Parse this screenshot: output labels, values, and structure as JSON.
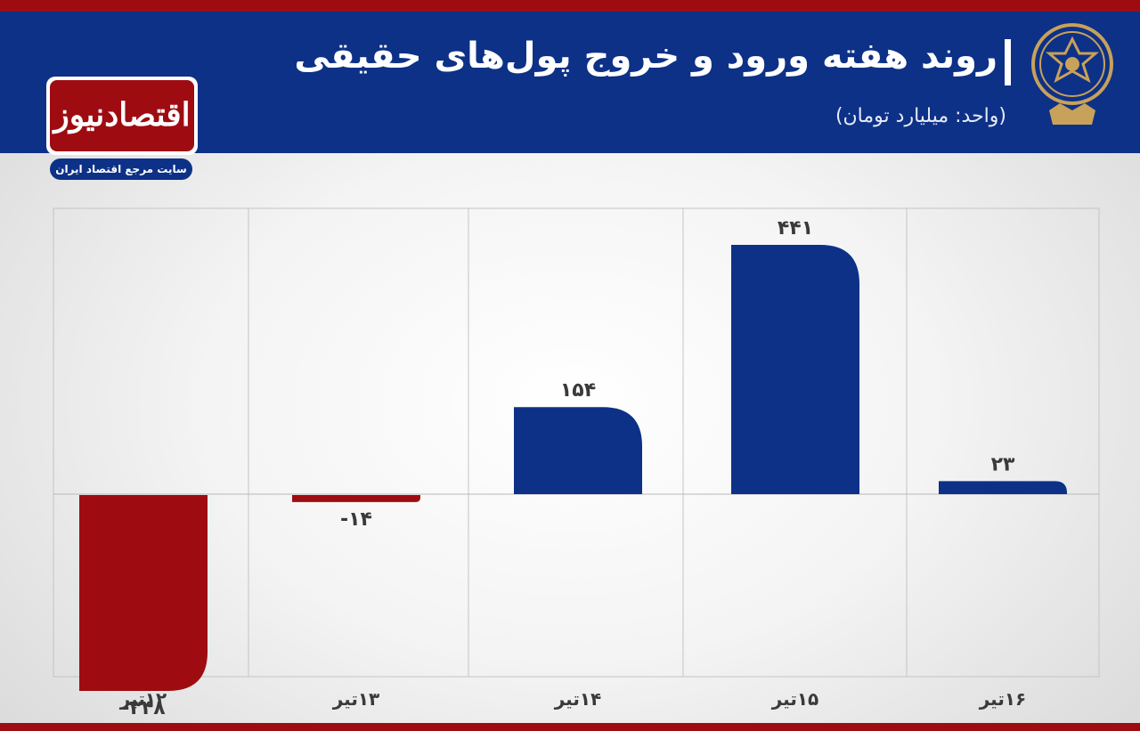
{
  "header": {
    "title": "روند هفته ورود و خروج پول‌های حقیقی",
    "subtitle": "(واحد:  میلیارد تومان)"
  },
  "brand": {
    "name": "اقتصادنیوز",
    "tagline": "سایت مرجع اقتصاد ایران"
  },
  "colors": {
    "positive": "#0d3187",
    "negative": "#9e0c12",
    "header_bg": "#0d3187",
    "accent_red": "#9e0c12",
    "gold": "#c8a15a"
  },
  "chart_data": {
    "type": "bar",
    "categories": [
      "۱۲تیر",
      "۱۳تیر",
      "۱۴تیر",
      "۱۵تیر",
      "۱۶تیر"
    ],
    "values": [
      -348,
      -14,
      154,
      441,
      23
    ],
    "value_labels": [
      "-۳۴۸",
      "-۱۴",
      "۱۵۴",
      "۴۴۱",
      "۲۳"
    ],
    "ylim": [
      -430,
      500
    ],
    "grid": true,
    "xlabel": "",
    "ylabel": ""
  }
}
